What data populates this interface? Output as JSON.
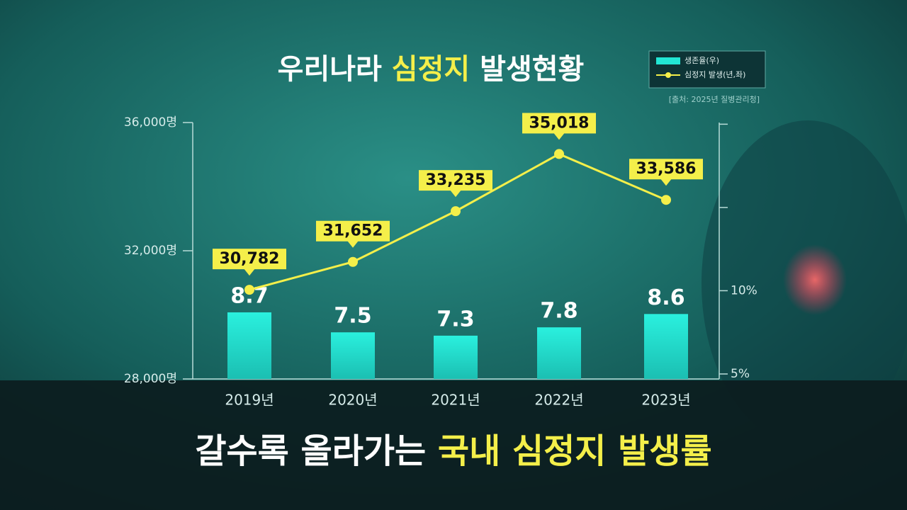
{
  "chart_data": {
    "type": "combo",
    "title": [
      "우리나라",
      "심정지",
      "발생현황"
    ],
    "highlight_color": "#f4ef4a",
    "source": "[출처: 2025년 질병관리청]",
    "caption": [
      "갈수록 올라가는",
      "국내 심정지 발생률"
    ],
    "categories": [
      "2019년",
      "2020년",
      "2021년",
      "2022년",
      "2023년"
    ],
    "series": [
      {
        "name": "생존율(우)",
        "type": "bar",
        "axis": "y2",
        "color": "#22e6d4",
        "values": [
          8.7,
          7.5,
          7.3,
          7.8,
          8.6
        ]
      },
      {
        "name": "심정지 발생(년,좌)",
        "type": "line",
        "color": "#f4ef4a",
        "values": [
          30782,
          31652,
          33235,
          35018,
          33586
        ],
        "value_labels": [
          "30,782",
          "31,652",
          "33,235",
          "35,018",
          "33,586"
        ]
      }
    ],
    "ylim": [
      28000,
      36000
    ],
    "yticks": [
      {
        "value": 28000,
        "label": "28,000명"
      },
      {
        "value": 32000,
        "label": "32,000명"
      },
      {
        "value": 36000,
        "label": "36,000명"
      }
    ],
    "y2lim": [
      4.7,
      20.1
    ],
    "y2ticks": [
      {
        "value": 5,
        "label": "5%"
      },
      {
        "value": 10,
        "label": "10%"
      },
      {
        "value": 15,
        "label": null
      },
      {
        "value": 20,
        "label": null
      }
    ]
  }
}
